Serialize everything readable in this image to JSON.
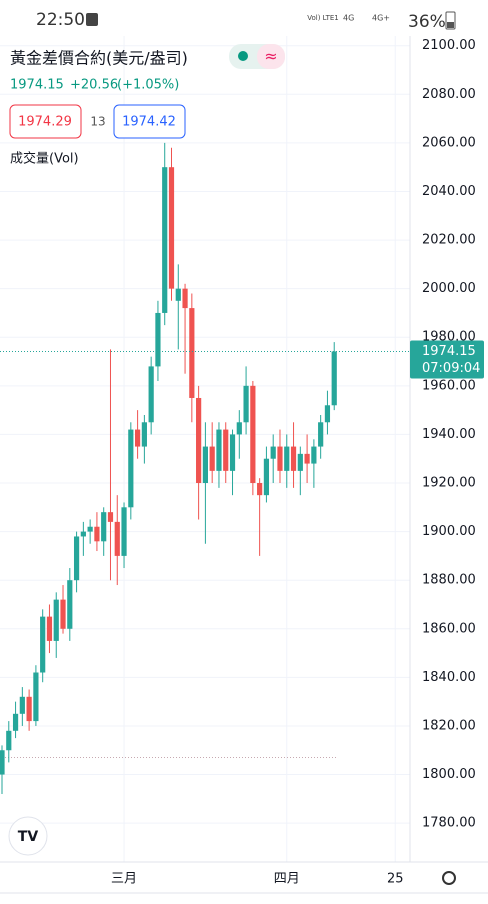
{
  "status_bar": {
    "time": "22:50",
    "network1": "Vol) LTE1",
    "network2": "4G",
    "network3": "4G+",
    "battery": "36%"
  },
  "header": {
    "title": "黃金差價合約(美元/盎司)",
    "change": "+20.56",
    "change_pct": "(+1.05%)",
    "bid": "1974.29",
    "spread": "13",
    "ask": "1974.42",
    "volume_label": "成交量(Vol)"
  },
  "chart_data": {
    "type": "candlestick",
    "categories": [
      null,
      null,
      null,
      null,
      null,
      null,
      null,
      null,
      null,
      null,
      null,
      null,
      null,
      null,
      null,
      null,
      null,
      null,
      "三月",
      null,
      null,
      null,
      null,
      null,
      null,
      null,
      null,
      null,
      null,
      null,
      null,
      null,
      null,
      null,
      null,
      null,
      null,
      null,
      null,
      null,
      null,
      null,
      "四月",
      null,
      null,
      null,
      null,
      null,
      null,
      null,
      null,
      null,
      null,
      null,
      null,
      null,
      null,
      null,
      "25"
    ],
    "open": [
      1800,
      1810,
      1818,
      1825,
      1832,
      1822,
      1842,
      1865,
      1855,
      1872,
      1860,
      1880,
      1898,
      1900,
      1902,
      1896,
      1908,
      1904,
      1890,
      1910,
      1942,
      1935,
      1945,
      1968,
      1990,
      2050,
      1995,
      2000,
      1992,
      1955,
      1920,
      1935,
      1925,
      1942,
      1925,
      1940,
      1945,
      1960,
      1920,
      1915,
      1930,
      1935,
      1925,
      1935,
      1925,
      1932,
      1928,
      1935,
      1945,
      1952,
      null,
      null,
      null,
      null,
      null,
      null,
      null,
      null,
      null
    ],
    "high": [
      1812,
      1822,
      1830,
      1836,
      1835,
      1845,
      1868,
      1870,
      1875,
      1878,
      1885,
      1900,
      1904,
      1905,
      1908,
      1910,
      1975,
      1915,
      1912,
      1945,
      1950,
      1948,
      1972,
      1995,
      2060,
      2058,
      2010,
      2002,
      1998,
      1960,
      1945,
      1945,
      1945,
      1945,
      1942,
      1950,
      1968,
      1962,
      1922,
      1935,
      1940,
      1942,
      1940,
      1945,
      1935,
      1940,
      1938,
      1948,
      1958,
      1978,
      null,
      null,
      null,
      null,
      null,
      null,
      null,
      null,
      null
    ],
    "low": [
      1792,
      1805,
      1815,
      1820,
      1818,
      1820,
      1838,
      1850,
      1848,
      1858,
      1855,
      1875,
      1890,
      1895,
      1892,
      1890,
      1880,
      1878,
      1885,
      1905,
      1930,
      1928,
      1940,
      1962,
      1985,
      1995,
      1975,
      1965,
      1945,
      1905,
      1895,
      1920,
      1918,
      1920,
      1915,
      1930,
      1940,
      1915,
      1890,
      1912,
      1920,
      1920,
      1918,
      1918,
      1915,
      1920,
      1918,
      1930,
      1940,
      1950,
      null,
      null,
      null,
      null,
      null,
      null,
      null,
      null,
      null
    ],
    "close": [
      1810,
      1818,
      1825,
      1832,
      1822,
      1842,
      1865,
      1855,
      1872,
      1860,
      1880,
      1898,
      1900,
      1902,
      1896,
      1908,
      1904,
      1890,
      1910,
      1942,
      1935,
      1945,
      1968,
      1990,
      2050,
      2000,
      2000,
      1992,
      1955,
      1920,
      1935,
      1925,
      1942,
      1925,
      1940,
      1945,
      1960,
      1920,
      1915,
      1930,
      1935,
      1925,
      1935,
      1925,
      1932,
      1928,
      1935,
      1945,
      1952,
      1974.15,
      null,
      null,
      null,
      null,
      null,
      null,
      null,
      null,
      null
    ],
    "up_color": "#26a69a",
    "down_color": "#ef5350",
    "last_price": 1974.15,
    "countdown": "07:09:04",
    "low_line": 1807,
    "ylim": [
      1764,
      2104
    ],
    "yticks": [
      {
        "value": 1780,
        "label": "1780.00"
      },
      {
        "value": 1800,
        "label": "1800.00"
      },
      {
        "value": 1820,
        "label": "1820.00"
      },
      {
        "value": 1840,
        "label": "1840.00"
      },
      {
        "value": 1860,
        "label": "1860.00"
      },
      {
        "value": 1880,
        "label": "1880.00"
      },
      {
        "value": 1900,
        "label": "1900.00"
      },
      {
        "value": 1920,
        "label": "1920.00"
      },
      {
        "value": 1940,
        "label": "1940.00"
      },
      {
        "value": 1960,
        "label": "1960.00"
      },
      {
        "value": 1980,
        "label": "1980.00"
      },
      {
        "value": 2000,
        "label": "2000.00"
      },
      {
        "value": 2020,
        "label": "2020.00"
      },
      {
        "value": 2040,
        "label": "2040.00"
      },
      {
        "value": 2060,
        "label": "2060.00"
      },
      {
        "value": 2080,
        "label": "2080.00"
      },
      {
        "value": 2100,
        "label": "2100.00"
      }
    ],
    "grid": true
  }
}
